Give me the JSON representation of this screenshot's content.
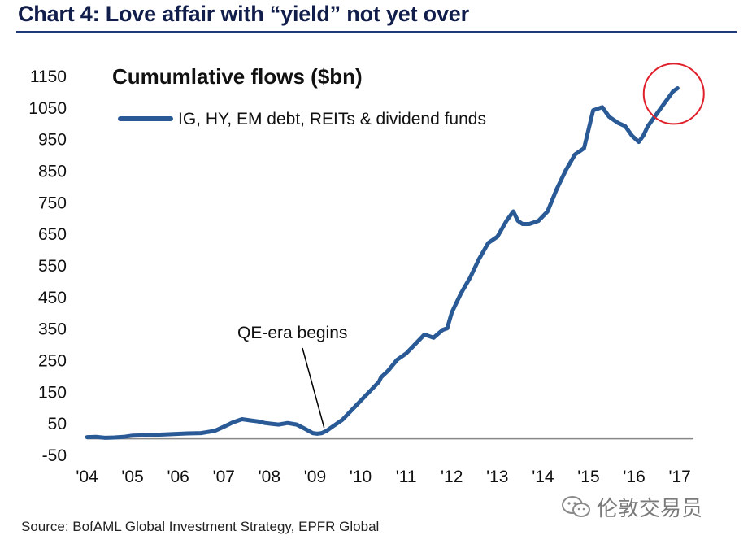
{
  "header": {
    "title": "Chart 4: Love affair with “yield” not yet over"
  },
  "source": "Source: BofAML Global Investment Strategy, EPFR Global",
  "watermark": {
    "text": "伦敦交易员",
    "icon": "wechat-logo-icon"
  },
  "colors": {
    "title": "#111d4a",
    "series": "#2a5a96",
    "highlight_circle": "#e0202a",
    "axis": "#888888"
  },
  "chart_data": {
    "type": "line",
    "title": "Cumumlative flows ($bn)",
    "xlabel": "",
    "ylabel": "",
    "xlim": [
      2004.0,
      2017.3
    ],
    "ylim": [
      -50,
      1150
    ],
    "y_ticks": [
      "1150",
      "1050",
      "950",
      "850",
      "750",
      "650",
      "550",
      "450",
      "350",
      "250",
      "150",
      "50",
      "-50"
    ],
    "y_tick_values": [
      1150,
      1050,
      950,
      850,
      750,
      650,
      550,
      450,
      350,
      250,
      150,
      50,
      -50
    ],
    "x_ticks": [
      "'04",
      "'05",
      "'06",
      "'07",
      "'08",
      "'09",
      "'10",
      "'11",
      "'12",
      "'13",
      "'14",
      "'15",
      "'16",
      "'17"
    ],
    "x_tick_values": [
      2004,
      2005,
      2006,
      2007,
      2008,
      2009,
      2010,
      2011,
      2012,
      2013,
      2014,
      2015,
      2016,
      2017
    ],
    "grid": false,
    "legend_position": "top-left",
    "series": [
      {
        "name": "IG, HY, EM debt, REITs & dividend funds",
        "x": [
          2004.0,
          2004.2,
          2004.4,
          2004.6,
          2004.8,
          2005.0,
          2005.3,
          2005.6,
          2005.9,
          2006.2,
          2006.5,
          2006.8,
          2007.0,
          2007.2,
          2007.4,
          2007.6,
          2007.75,
          2007.9,
          2008.0,
          2008.2,
          2008.4,
          2008.6,
          2008.8,
          2008.95,
          2009.05,
          2009.15,
          2009.25,
          2009.4,
          2009.6,
          2009.8,
          2010.0,
          2010.2,
          2010.4,
          2010.45,
          2010.6,
          2010.8,
          2011.0,
          2011.2,
          2011.4,
          2011.6,
          2011.8,
          2011.9,
          2012.0,
          2012.2,
          2012.4,
          2012.6,
          2012.8,
          2013.0,
          2013.2,
          2013.35,
          2013.45,
          2013.55,
          2013.7,
          2013.9,
          2014.1,
          2014.3,
          2014.5,
          2014.7,
          2014.9,
          2015.1,
          2015.3,
          2015.45,
          2015.55,
          2015.65,
          2015.8,
          2015.95,
          2016.1,
          2016.2,
          2016.3,
          2016.45,
          2016.6,
          2016.75,
          2016.85,
          2016.95
        ],
        "values": [
          5,
          6,
          3,
          4,
          6,
          10,
          11,
          13,
          15,
          17,
          18,
          25,
          38,
          52,
          62,
          58,
          55,
          50,
          48,
          45,
          50,
          45,
          30,
          18,
          16,
          18,
          25,
          40,
          60,
          90,
          120,
          150,
          180,
          195,
          215,
          250,
          270,
          300,
          330,
          320,
          345,
          350,
          400,
          460,
          510,
          570,
          620,
          640,
          690,
          720,
          690,
          680,
          680,
          690,
          720,
          790,
          850,
          900,
          920,
          1040,
          1050,
          1020,
          1010,
          1000,
          990,
          960,
          940,
          960,
          990,
          1020,
          1050,
          1080,
          1100,
          1110
        ]
      }
    ],
    "annotations": [
      {
        "text": "QE-era begins",
        "x": 2009.2,
        "y": 15
      }
    ],
    "highlight": {
      "type": "circle",
      "x": 2016.85,
      "y": 1100
    }
  }
}
